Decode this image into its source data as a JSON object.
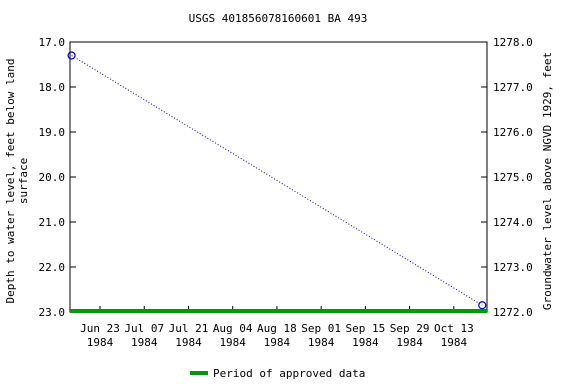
{
  "chart_data": {
    "type": "line",
    "title": "USGS 401856078160601 BA   493",
    "ylabel": [
      "Depth to water level, feet below land",
      "surface"
    ],
    "y2label": "Groundwater level above NGVD 1929, feet",
    "x": [
      "1984-06-14",
      "1984-10-22"
    ],
    "series": [
      {
        "name": "Depth to water level",
        "color": "#0000cc",
        "values": [
          17.3,
          22.85
        ]
      }
    ],
    "xlim": [
      "1984-06-13T12:00",
      "1984-10-23T12:00"
    ],
    "xticks": [
      {
        "value": "1984-06-23",
        "label": "Jun 23\n1984"
      },
      {
        "value": "1984-07-07",
        "label": "Jul 07\n1984"
      },
      {
        "value": "1984-07-21",
        "label": "Jul 21\n1984"
      },
      {
        "value": "1984-08-04",
        "label": "Aug 04\n1984"
      },
      {
        "value": "1984-08-18",
        "label": "Aug 18\n1984"
      },
      {
        "value": "1984-09-01",
        "label": "Sep 01\n1984"
      },
      {
        "value": "1984-09-15",
        "label": "Sep 15\n1984"
      },
      {
        "value": "1984-09-29",
        "label": "Sep 29\n1984"
      },
      {
        "value": "1984-10-13",
        "label": "Oct 13\n1984"
      }
    ],
    "ylim": [
      17,
      23
    ],
    "y_inverted": true,
    "yticks": [
      {
        "value": 17,
        "label": "17.0"
      },
      {
        "value": 18,
        "label": "18.0"
      },
      {
        "value": 19,
        "label": "19.0"
      },
      {
        "value": 20,
        "label": "20.0"
      },
      {
        "value": 21,
        "label": "21.0"
      },
      {
        "value": 22,
        "label": "22.0"
      },
      {
        "value": 23,
        "label": "23.0"
      }
    ],
    "y2lim": [
      1278,
      1272
    ],
    "y2ticks": [
      {
        "value": 1278,
        "label": "1278.0"
      },
      {
        "value": 1277,
        "label": "1277.0"
      },
      {
        "value": 1276,
        "label": "1276.0"
      },
      {
        "value": 1275,
        "label": "1275.0"
      },
      {
        "value": 1274,
        "label": "1274.0"
      },
      {
        "value": 1273,
        "label": "1273.0"
      },
      {
        "value": 1272,
        "label": "1272.0"
      }
    ],
    "approved_period": {
      "name": "Period of approved data",
      "color": "#009900",
      "start": "1984-06-13T12:00",
      "end": "1984-10-23T12:00"
    }
  }
}
